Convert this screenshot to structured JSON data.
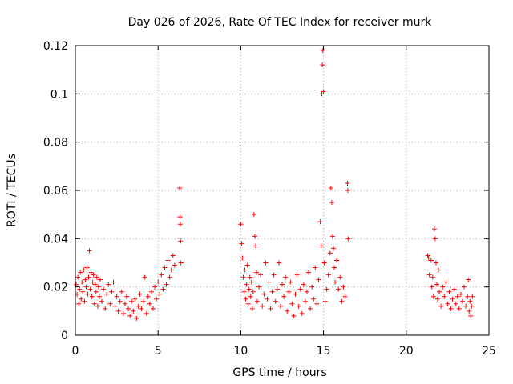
{
  "chart_data": {
    "type": "scatter",
    "title": "Day 026 of 2026, Rate Of TEC Index for receiver murk",
    "xlabel": "GPS time / hours",
    "ylabel": "ROTI / TECUs",
    "xlim": [
      0,
      25
    ],
    "ylim": [
      0,
      0.12
    ],
    "xticks": [
      0,
      5,
      10,
      15,
      20,
      25
    ],
    "xtick_labels": [
      "0",
      "5",
      "10",
      "15",
      "20",
      "25"
    ],
    "yticks": [
      0,
      0.02,
      0.04,
      0.06,
      0.08,
      0.1,
      0.12
    ],
    "ytick_labels": [
      "0",
      "0.02",
      "0.04",
      "0.06",
      "0.08",
      "0.1",
      "0.12"
    ],
    "grid": true,
    "marker": "+",
    "color": "#ff0000",
    "series": [
      {
        "points": [
          [
            0.05,
            0.021
          ],
          [
            0.1,
            0.017
          ],
          [
            0.15,
            0.024
          ],
          [
            0.2,
            0.013
          ],
          [
            0.25,
            0.019
          ],
          [
            0.3,
            0.026
          ],
          [
            0.35,
            0.015
          ],
          [
            0.4,
            0.022
          ],
          [
            0.45,
            0.018
          ],
          [
            0.5,
            0.027
          ],
          [
            0.55,
            0.014
          ],
          [
            0.6,
            0.023
          ],
          [
            0.65,
            0.02
          ],
          [
            0.7,
            0.028
          ],
          [
            0.75,
            0.017
          ],
          [
            0.8,
            0.024
          ],
          [
            0.85,
            0.035
          ],
          [
            0.9,
            0.019
          ],
          [
            0.95,
            0.026
          ],
          [
            1.0,
            0.016
          ],
          [
            1.05,
            0.022
          ],
          [
            1.1,
            0.025
          ],
          [
            1.15,
            0.013
          ],
          [
            1.2,
            0.021
          ],
          [
            1.25,
            0.018
          ],
          [
            1.3,
            0.024
          ],
          [
            1.35,
            0.012
          ],
          [
            1.4,
            0.02
          ],
          [
            1.45,
            0.016
          ],
          [
            1.5,
            0.023
          ],
          [
            1.6,
            0.014
          ],
          [
            1.7,
            0.019
          ],
          [
            1.8,
            0.011
          ],
          [
            1.9,
            0.017
          ],
          [
            2.0,
            0.021
          ],
          [
            2.1,
            0.013
          ],
          [
            2.2,
            0.018
          ],
          [
            2.3,
            0.022
          ],
          [
            2.4,
            0.012
          ],
          [
            2.5,
            0.016
          ],
          [
            2.6,
            0.01
          ],
          [
            2.7,
            0.014
          ],
          [
            2.8,
            0.018
          ],
          [
            2.9,
            0.009
          ],
          [
            3.0,
            0.013
          ],
          [
            3.1,
            0.016
          ],
          [
            3.2,
            0.011
          ],
          [
            3.3,
            0.008
          ],
          [
            3.4,
            0.014
          ],
          [
            3.5,
            0.01
          ],
          [
            3.6,
            0.015
          ],
          [
            3.7,
            0.007
          ],
          [
            3.8,
            0.012
          ],
          [
            3.9,
            0.017
          ],
          [
            4.0,
            0.011
          ],
          [
            4.1,
            0.014
          ],
          [
            4.2,
            0.024
          ],
          [
            4.3,
            0.009
          ],
          [
            4.4,
            0.016
          ],
          [
            4.5,
            0.013
          ],
          [
            4.6,
            0.018
          ],
          [
            4.7,
            0.011
          ],
          [
            4.8,
            0.02
          ],
          [
            4.9,
            0.015
          ],
          [
            5.0,
            0.022
          ],
          [
            5.1,
            0.017
          ],
          [
            5.2,
            0.025
          ],
          [
            5.3,
            0.019
          ],
          [
            5.4,
            0.028
          ],
          [
            5.5,
            0.021
          ],
          [
            5.6,
            0.031
          ],
          [
            5.7,
            0.024
          ],
          [
            5.8,
            0.027
          ],
          [
            5.9,
            0.033
          ],
          [
            6.0,
            0.029
          ],
          [
            6.3,
            0.061
          ],
          [
            6.32,
            0.049
          ],
          [
            6.34,
            0.046
          ],
          [
            6.36,
            0.039
          ],
          [
            6.38,
            0.03
          ],
          [
            10.0,
            0.046
          ],
          [
            10.05,
            0.038
          ],
          [
            10.1,
            0.032
          ],
          [
            10.15,
            0.024
          ],
          [
            10.2,
            0.018
          ],
          [
            10.25,
            0.027
          ],
          [
            10.3,
            0.015
          ],
          [
            10.35,
            0.021
          ],
          [
            10.4,
            0.029
          ],
          [
            10.45,
            0.013
          ],
          [
            10.5,
            0.019
          ],
          [
            10.55,
            0.024
          ],
          [
            10.6,
            0.016
          ],
          [
            10.65,
            0.022
          ],
          [
            10.7,
            0.011
          ],
          [
            10.75,
            0.018
          ],
          [
            10.8,
            0.05
          ],
          [
            10.85,
            0.041
          ],
          [
            10.9,
            0.037
          ],
          [
            10.95,
            0.026
          ],
          [
            11.0,
            0.014
          ],
          [
            11.1,
            0.02
          ],
          [
            11.2,
            0.025
          ],
          [
            11.3,
            0.012
          ],
          [
            11.4,
            0.017
          ],
          [
            11.5,
            0.03
          ],
          [
            11.6,
            0.015
          ],
          [
            11.7,
            0.022
          ],
          [
            11.8,
            0.011
          ],
          [
            11.9,
            0.018
          ],
          [
            12.0,
            0.025
          ],
          [
            12.1,
            0.014
          ],
          [
            12.2,
            0.019
          ],
          [
            12.3,
            0.03
          ],
          [
            12.4,
            0.012
          ],
          [
            12.5,
            0.021
          ],
          [
            12.6,
            0.016
          ],
          [
            12.7,
            0.024
          ],
          [
            12.8,
            0.01
          ],
          [
            12.9,
            0.018
          ],
          [
            13.0,
            0.022
          ],
          [
            13.1,
            0.013
          ],
          [
            13.2,
            0.008
          ],
          [
            13.3,
            0.017
          ],
          [
            13.4,
            0.025
          ],
          [
            13.5,
            0.012
          ],
          [
            13.6,
            0.019
          ],
          [
            13.7,
            0.009
          ],
          [
            13.8,
            0.021
          ],
          [
            13.9,
            0.014
          ],
          [
            14.0,
            0.018
          ],
          [
            14.1,
            0.026
          ],
          [
            14.2,
            0.011
          ],
          [
            14.3,
            0.02
          ],
          [
            14.4,
            0.015
          ],
          [
            14.5,
            0.028
          ],
          [
            14.6,
            0.013
          ],
          [
            14.7,
            0.023
          ],
          [
            14.8,
            0.047
          ],
          [
            14.85,
            0.037
          ],
          [
            14.9,
            0.1
          ],
          [
            14.93,
            0.112
          ],
          [
            14.96,
            0.118
          ],
          [
            15.0,
            0.101
          ],
          [
            15.05,
            0.03
          ],
          [
            15.1,
            0.014
          ],
          [
            15.2,
            0.019
          ],
          [
            15.3,
            0.025
          ],
          [
            15.4,
            0.034
          ],
          [
            15.45,
            0.061
          ],
          [
            15.5,
            0.055
          ],
          [
            15.55,
            0.041
          ],
          [
            15.6,
            0.036
          ],
          [
            15.65,
            0.028
          ],
          [
            15.7,
            0.022
          ],
          [
            15.8,
            0.031
          ],
          [
            15.9,
            0.019
          ],
          [
            16.0,
            0.024
          ],
          [
            16.1,
            0.014
          ],
          [
            16.2,
            0.02
          ],
          [
            16.3,
            0.016
          ],
          [
            16.45,
            0.063
          ],
          [
            16.47,
            0.06
          ],
          [
            16.49,
            0.04
          ],
          [
            21.3,
            0.033
          ],
          [
            21.35,
            0.032
          ],
          [
            21.4,
            0.025
          ],
          [
            21.5,
            0.031
          ],
          [
            21.55,
            0.02
          ],
          [
            21.6,
            0.024
          ],
          [
            21.65,
            0.016
          ],
          [
            21.7,
            0.044
          ],
          [
            21.75,
            0.04
          ],
          [
            21.8,
            0.03
          ],
          [
            21.85,
            0.021
          ],
          [
            21.9,
            0.015
          ],
          [
            21.95,
            0.027
          ],
          [
            22.0,
            0.018
          ],
          [
            22.1,
            0.012
          ],
          [
            22.2,
            0.02
          ],
          [
            22.3,
            0.016
          ],
          [
            22.4,
            0.022
          ],
          [
            22.5,
            0.013
          ],
          [
            22.6,
            0.018
          ],
          [
            22.7,
            0.011
          ],
          [
            22.8,
            0.015
          ],
          [
            22.9,
            0.019
          ],
          [
            23.0,
            0.013
          ],
          [
            23.1,
            0.016
          ],
          [
            23.2,
            0.011
          ],
          [
            23.3,
            0.017
          ],
          [
            23.4,
            0.014
          ],
          [
            23.5,
            0.02
          ],
          [
            23.6,
            0.012
          ],
          [
            23.7,
            0.016
          ],
          [
            23.75,
            0.023
          ],
          [
            23.8,
            0.01
          ],
          [
            23.85,
            0.014
          ],
          [
            23.9,
            0.008
          ],
          [
            23.95,
            0.012
          ],
          [
            24.0,
            0.016
          ]
        ]
      }
    ]
  }
}
